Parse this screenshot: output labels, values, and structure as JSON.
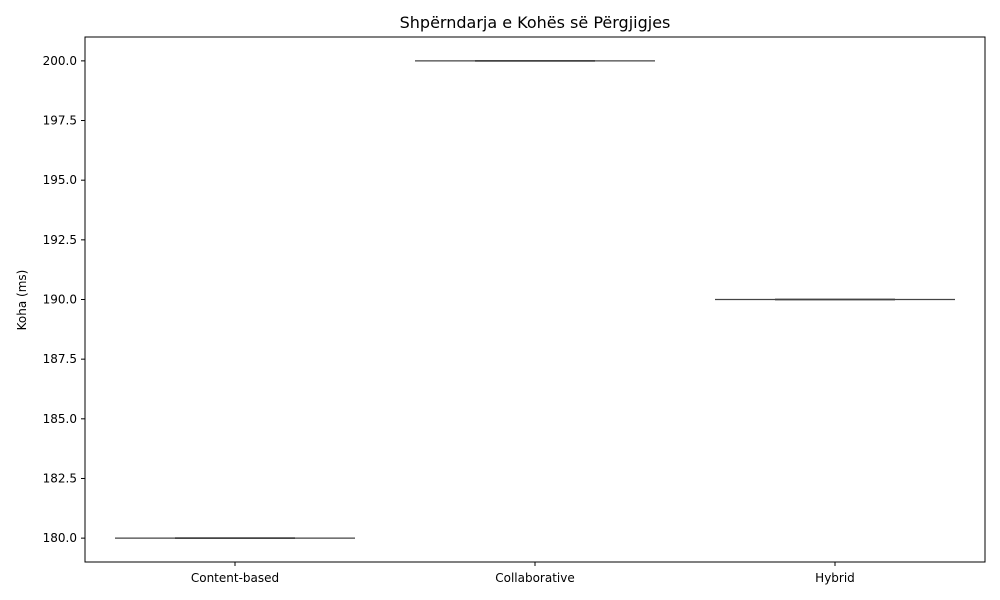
{
  "chart_data": {
    "type": "box",
    "title": "Shpërndarja e Kohës së Përgjigjes",
    "xlabel": "",
    "ylabel": "Koha (ms)",
    "categories": [
      "Content-based",
      "Collaborative",
      "Hybrid"
    ],
    "values": [
      180,
      200,
      190
    ],
    "ylim": [
      179,
      201
    ],
    "yticks": [
      180.0,
      182.5,
      185.0,
      187.5,
      190.0,
      192.5,
      195.0,
      197.5,
      200.0
    ],
    "ytick_labels": [
      "180.0",
      "182.5",
      "185.0",
      "187.5",
      "190.0",
      "192.5",
      "195.0",
      "197.5",
      "200.0"
    ],
    "grid": false,
    "colors": {
      "box_line": "#444444",
      "axis": "#000000"
    }
  }
}
